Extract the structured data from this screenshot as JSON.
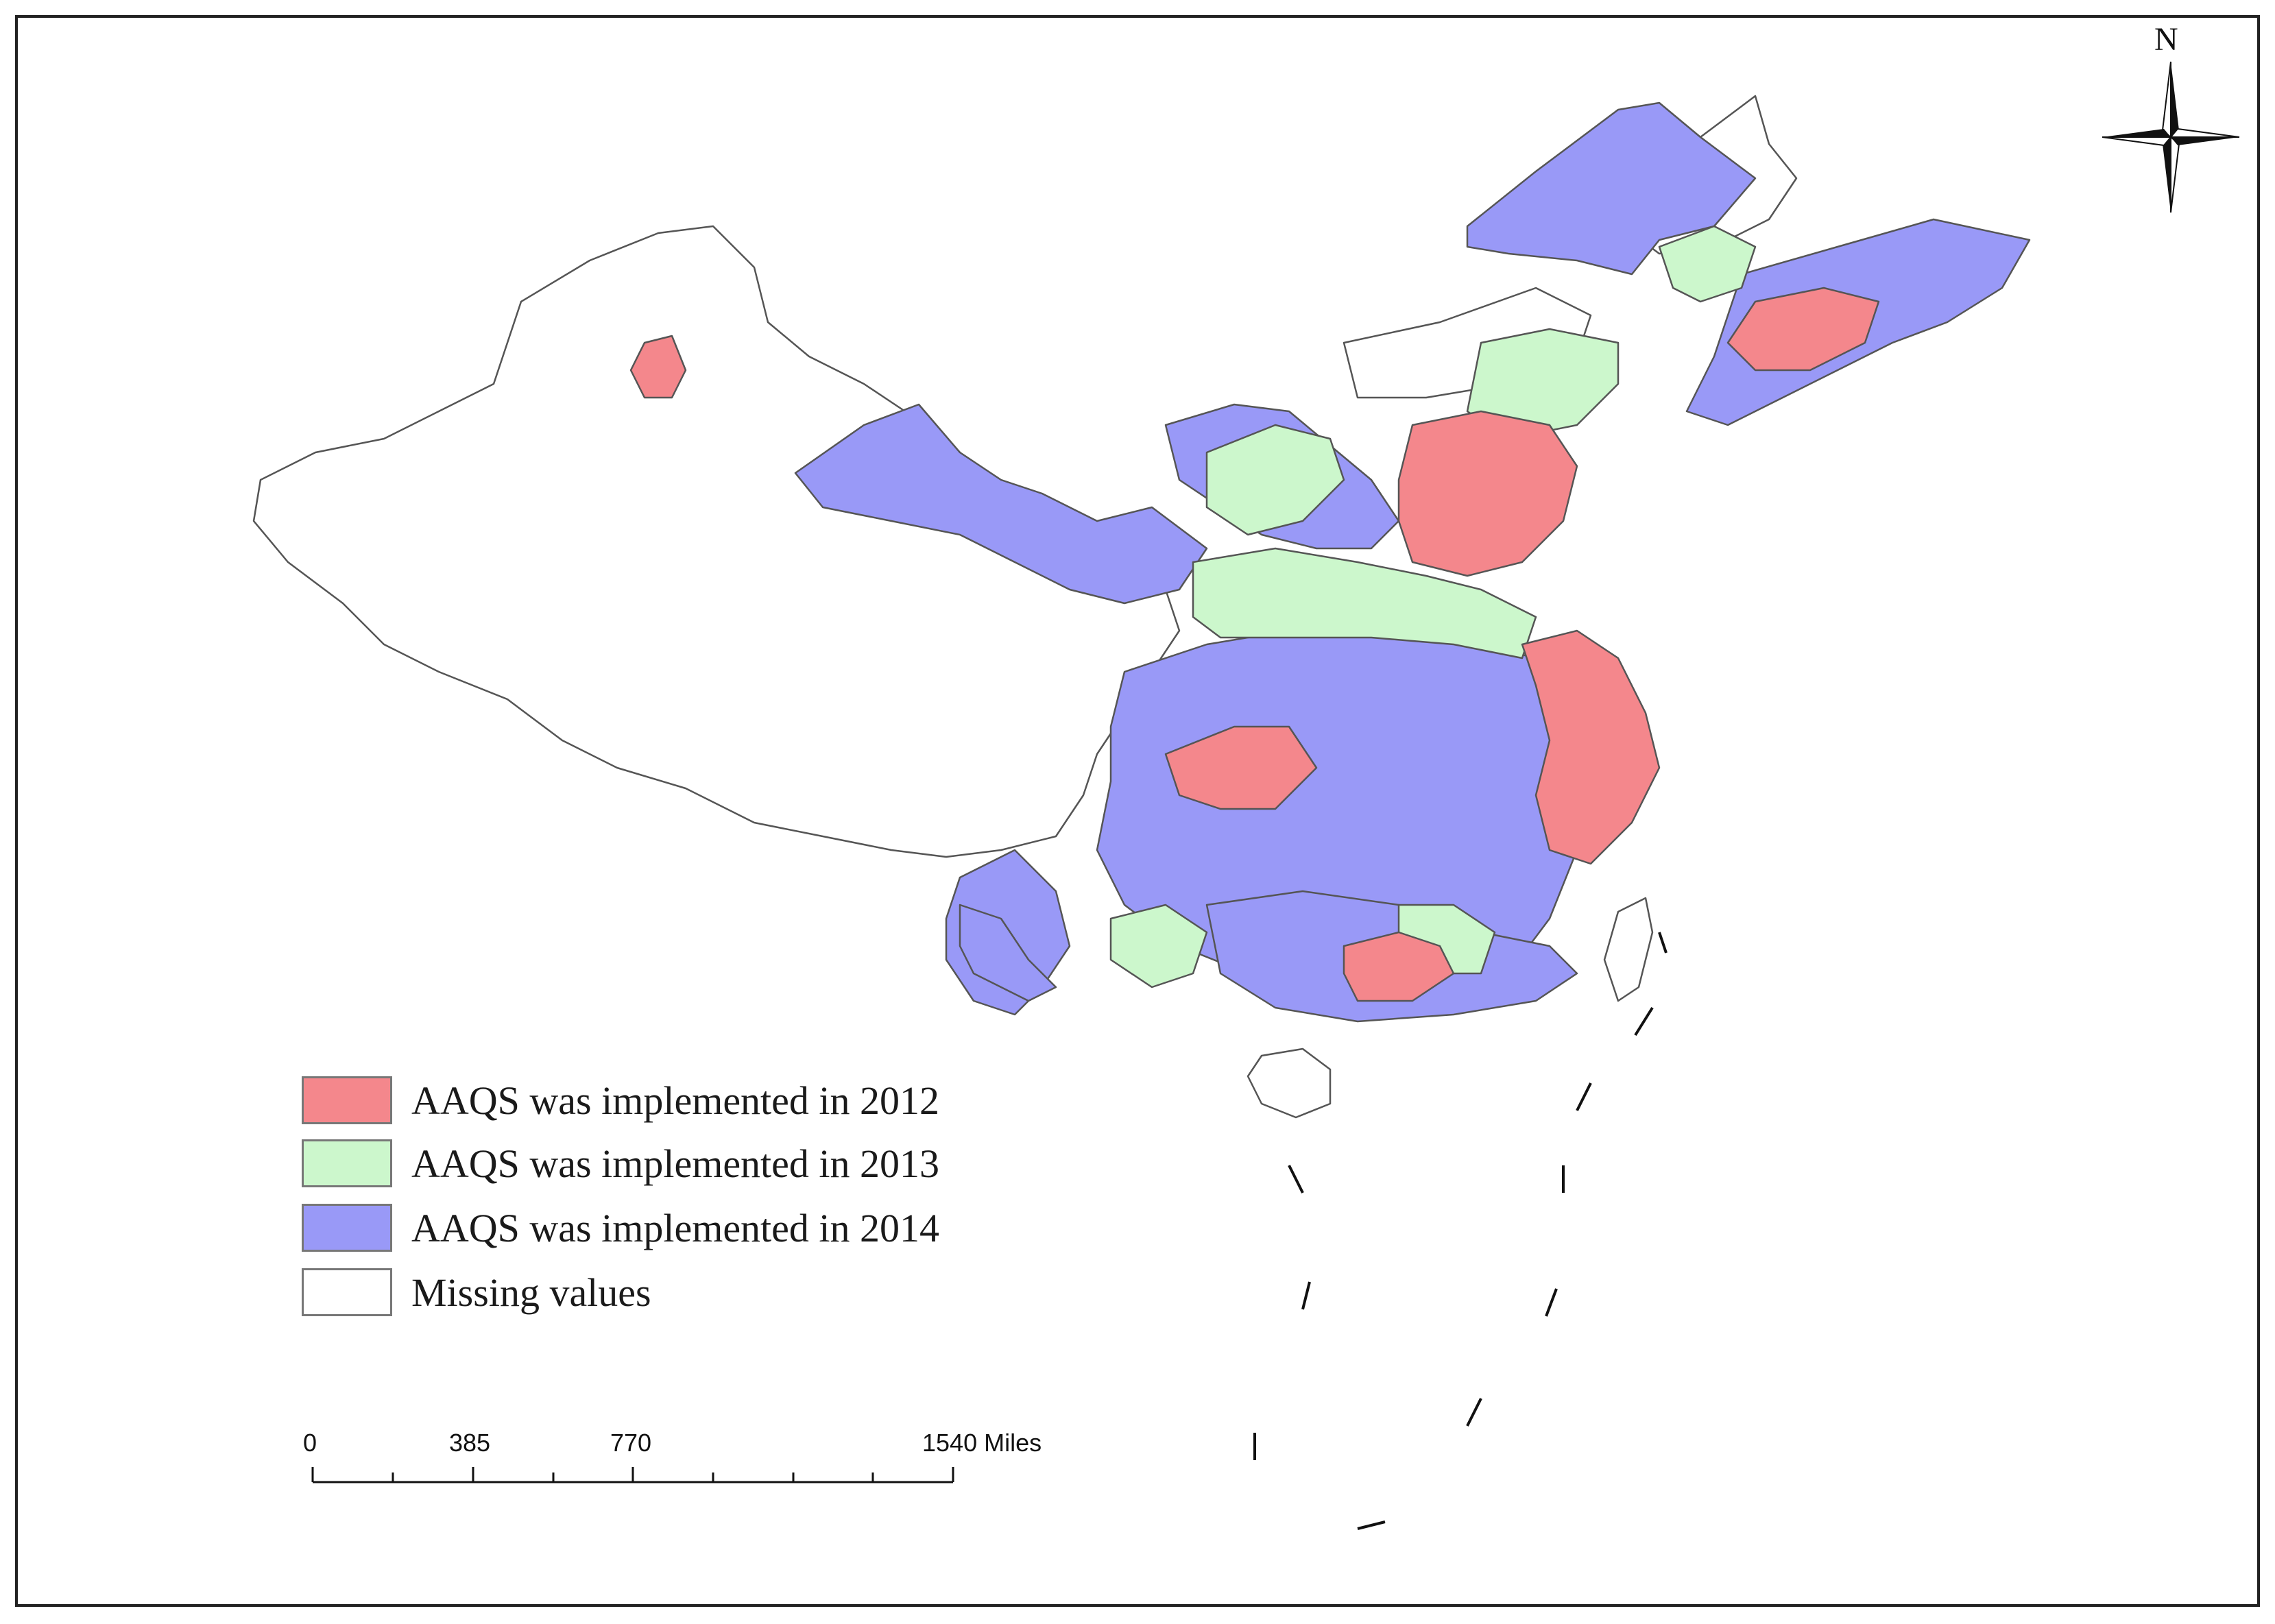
{
  "legend": {
    "items": [
      {
        "label": "AAQS was implemented in 2012",
        "color": "#f4878c"
      },
      {
        "label": "AAQS was implemented in 2013",
        "color": "#ccf7cc"
      },
      {
        "label": "AAQS was implemented in 2014",
        "color": "#9999f7"
      },
      {
        "label": "Missing values",
        "color": "#ffffff"
      }
    ]
  },
  "scale_bar": {
    "ticks": [
      "0",
      "385",
      "770",
      "1540 Miles"
    ]
  },
  "north_arrow": {
    "label": "N"
  },
  "colors": {
    "y2012": "#f4878c",
    "y2013": "#ccf7cc",
    "y2014": "#9999f7",
    "missing": "#ffffff",
    "boundary": "#555555"
  }
}
